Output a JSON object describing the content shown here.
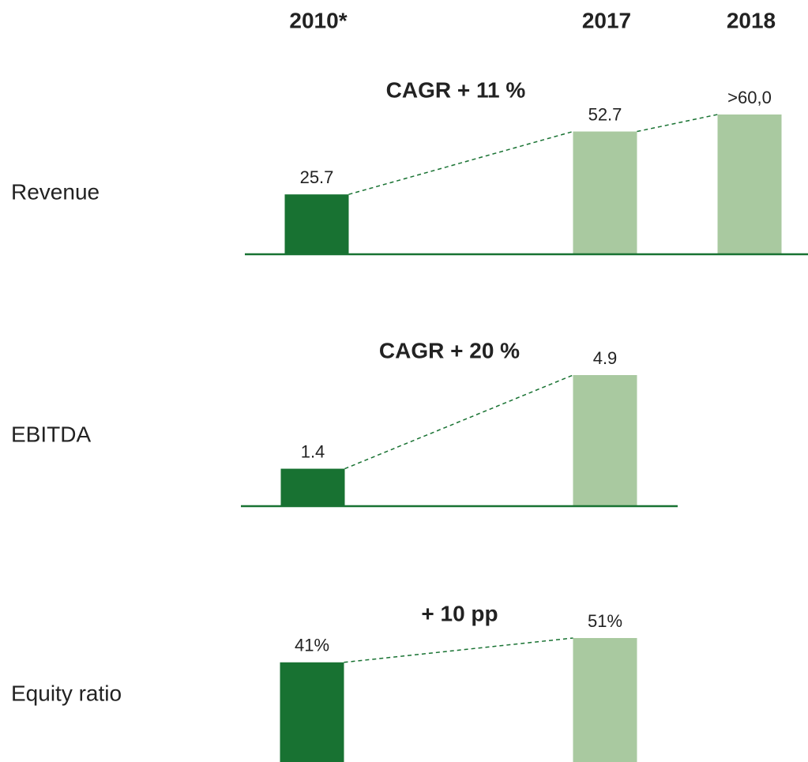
{
  "columns": [
    "2010*",
    "2017",
    "2018"
  ],
  "chart_data": [
    {
      "type": "bar",
      "title": "Revenue",
      "annotation": "CAGR + 11 %",
      "values": [
        25.7,
        52.7,
        60
      ],
      "value_labels": [
        "25.7",
        "52.7",
        ">60,0"
      ],
      "colors": [
        "#187232",
        "#a9c9a0",
        "#a9c9a0"
      ],
      "baseline": true
    },
    {
      "type": "bar",
      "title": "EBITDA",
      "annotation": "CAGR + 20 %",
      "values": [
        1.4,
        4.9
      ],
      "value_labels": [
        "1.4",
        "4.9"
      ],
      "colors": [
        "#187232",
        "#a9c9a0"
      ],
      "baseline": true
    },
    {
      "type": "bar",
      "title": "Equity ratio",
      "annotation": "+ 10 pp",
      "values": [
        41,
        51
      ],
      "value_labels": [
        "41%",
        "51%"
      ],
      "colors": [
        "#187232",
        "#a9c9a0"
      ],
      "baseline": false
    }
  ]
}
